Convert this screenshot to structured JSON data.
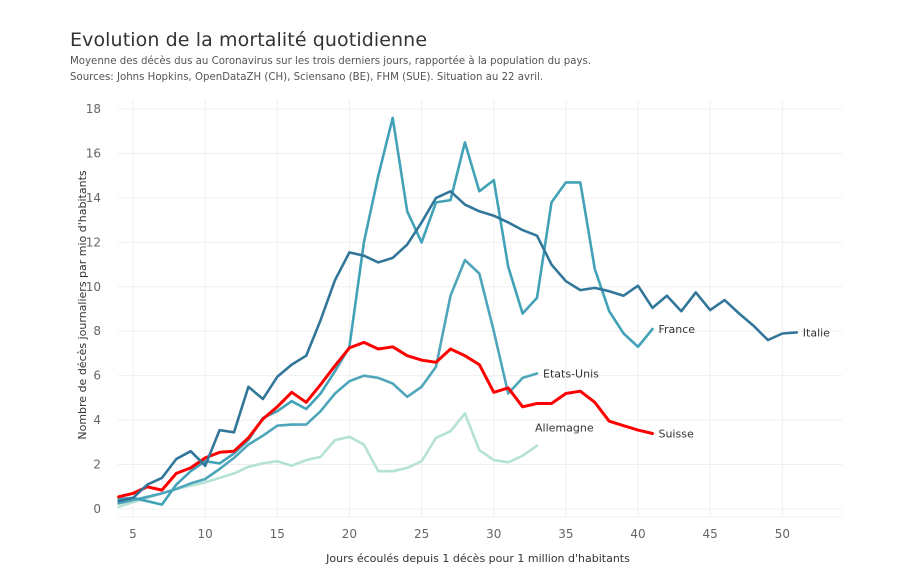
{
  "header": {
    "title": "Evolution de la mortalité quotidienne",
    "subtitle_line1": "Moyenne des décès dus au Coronavirus sur les trois derniers jours, rapportée à la population du pays.",
    "subtitle_line2": "Sources: Johns Hopkins, OpenDataZH (CH), Sciensano (BE), FHM (SUE). Situation au 22 avril."
  },
  "chart_data": {
    "type": "line",
    "title": "Evolution de la mortalité quotidienne",
    "xlabel": "Jours écoulés depuis 1 décès pour 1 million d'habitants",
    "ylabel": "Nombre de décès journaliers par mio d'habitants",
    "xlim": [
      4,
      54
    ],
    "ylim": [
      0,
      18
    ],
    "xticks": [
      5,
      10,
      15,
      20,
      25,
      30,
      35,
      40,
      45,
      50
    ],
    "yticks": [
      0,
      2,
      4,
      6,
      8,
      10,
      12,
      14,
      16,
      18
    ],
    "grid": true,
    "legend": "direct-labels-at-line-end",
    "series": [
      {
        "name": "Allemagne",
        "color": "#b5e2d6",
        "x": [
          4,
          5,
          6,
          7,
          8,
          9,
          10,
          11,
          12,
          13,
          14,
          15,
          16,
          17,
          18,
          19,
          20,
          21,
          22,
          23,
          24,
          25,
          26,
          27,
          28,
          29,
          30,
          31,
          32,
          33
        ],
        "values": [
          0.1,
          0.3,
          0.5,
          0.7,
          0.9,
          1.05,
          1.2,
          1.4,
          1.6,
          1.9,
          2.05,
          2.15,
          1.95,
          2.2,
          2.35,
          3.1,
          3.25,
          2.9,
          1.7,
          1.7,
          1.85,
          2.15,
          3.2,
          3.5,
          4.3,
          2.65,
          2.2,
          2.1,
          2.4,
          2.85
        ]
      },
      {
        "name": "Etats-Unis",
        "color": "#4fa6bb",
        "x": [
          4,
          5,
          6,
          7,
          8,
          9,
          10,
          11,
          12,
          13,
          14,
          15,
          16,
          17,
          18,
          19,
          20,
          21,
          22,
          23,
          24,
          25,
          26,
          27,
          28,
          29,
          30,
          31,
          32,
          33
        ],
        "values": [
          0.25,
          0.4,
          0.55,
          0.7,
          0.9,
          1.15,
          1.35,
          1.8,
          2.3,
          2.9,
          3.3,
          3.75,
          3.8,
          3.8,
          4.4,
          5.2,
          5.75,
          6.0,
          5.9,
          5.65,
          5.05,
          5.5,
          6.4,
          9.6,
          11.2,
          10.6,
          8.0,
          5.2,
          5.9,
          6.1
        ]
      },
      {
        "name": "France",
        "color": "#42a2b8",
        "x": [
          4,
          5,
          6,
          7,
          8,
          9,
          10,
          11,
          12,
          13,
          14,
          15,
          16,
          17,
          18,
          19,
          20,
          21,
          22,
          23,
          24,
          25,
          26,
          27,
          28,
          29,
          30,
          31,
          32,
          33,
          34,
          35,
          36,
          37,
          38,
          39,
          40,
          41
        ],
        "values": [
          0.45,
          0.5,
          0.35,
          0.2,
          1.1,
          1.7,
          2.15,
          2.05,
          2.5,
          3.1,
          4.1,
          4.4,
          4.85,
          4.5,
          5.2,
          6.2,
          7.3,
          12.0,
          15.0,
          17.6,
          13.4,
          12.0,
          13.8,
          13.9,
          16.5,
          14.3,
          14.8,
          10.9,
          8.8,
          9.5,
          13.8,
          14.7,
          14.7,
          10.8,
          8.9,
          7.9,
          7.3,
          8.1
        ]
      },
      {
        "name": "Suisse",
        "color": "#ff0000",
        "x": [
          4,
          5,
          6,
          7,
          8,
          9,
          10,
          11,
          12,
          13,
          14,
          15,
          16,
          17,
          18,
          19,
          20,
          21,
          22,
          23,
          24,
          25,
          26,
          27,
          28,
          29,
          30,
          31,
          32,
          33,
          34,
          35,
          36,
          37,
          38,
          39,
          40,
          41
        ],
        "values": [
          0.55,
          0.7,
          1.0,
          0.85,
          1.6,
          1.85,
          2.3,
          2.55,
          2.6,
          3.2,
          4.05,
          4.6,
          5.25,
          4.8,
          5.6,
          6.45,
          7.25,
          7.5,
          7.2,
          7.3,
          6.9,
          6.7,
          6.6,
          7.2,
          6.9,
          6.5,
          5.25,
          5.45,
          4.6,
          4.75,
          4.75,
          5.2,
          5.3,
          4.8,
          3.95,
          3.75,
          3.55,
          3.4
        ]
      },
      {
        "name": "Italie",
        "color": "#32779a",
        "x": [
          4,
          5,
          6,
          7,
          8,
          9,
          10,
          11,
          12,
          13,
          14,
          15,
          16,
          17,
          18,
          19,
          20,
          21,
          22,
          23,
          24,
          25,
          26,
          27,
          28,
          29,
          30,
          31,
          32,
          33,
          34,
          35,
          36,
          37,
          38,
          39,
          40,
          41,
          42,
          43,
          44,
          45,
          46,
          47,
          48,
          49,
          50,
          51
        ],
        "values": [
          0.35,
          0.5,
          1.1,
          1.4,
          2.25,
          2.6,
          1.95,
          3.55,
          3.45,
          5.5,
          4.95,
          5.95,
          6.5,
          6.9,
          8.5,
          10.3,
          11.55,
          11.4,
          11.1,
          11.3,
          11.9,
          12.9,
          14.0,
          14.3,
          13.7,
          13.4,
          13.2,
          12.9,
          12.55,
          12.3,
          11.0,
          10.25,
          9.85,
          9.95,
          9.8,
          9.6,
          10.05,
          9.05,
          9.6,
          8.9,
          9.75,
          8.95,
          9.4,
          8.8,
          8.25,
          7.6,
          7.9,
          7.95
        ]
      }
    ]
  }
}
